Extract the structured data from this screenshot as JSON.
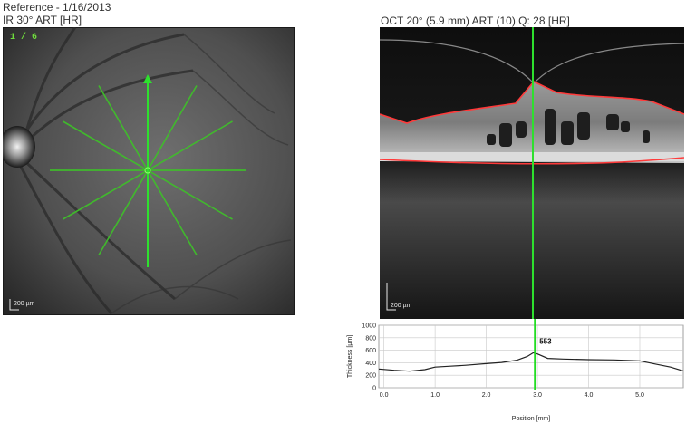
{
  "header": {
    "reference": "Reference - 1/16/2013",
    "ir_title": "IR 30° ART [HR]",
    "oct_title": "OCT 20° (5.9 mm) ART (10) Q: 28 [HR]"
  },
  "fundus": {
    "scan_counter": "1 / 6",
    "scale_label": "200 µm"
  },
  "bscan": {
    "scale_label": "200 µm"
  },
  "colors": {
    "scan_line": "#22dd22",
    "segmentation": "#ff3a3a",
    "profile": "#222222"
  },
  "chart_data": {
    "type": "line",
    "xlabel": "Position [mm]",
    "ylabel": "Thickness [µm]",
    "xlim": [
      -0.1,
      5.85
    ],
    "ylim": [
      0,
      1000
    ],
    "xticks": [
      "0.0",
      "1.0",
      "2.0",
      "3.0",
      "4.0",
      "5.0"
    ],
    "yticks": [
      "0",
      "200",
      "400",
      "600",
      "800",
      "1000"
    ],
    "grid": true,
    "marker_x": 2.95,
    "marker_label": "553",
    "series": [
      {
        "x": [
          -0.1,
          0.2,
          0.5,
          0.8,
          1.0,
          1.3,
          1.6,
          2.0,
          2.3,
          2.6,
          2.8,
          2.92,
          3.0,
          3.2,
          3.5,
          4.0,
          4.5,
          5.0,
          5.3,
          5.6,
          5.85
        ],
        "y": [
          300,
          280,
          265,
          290,
          330,
          345,
          360,
          385,
          405,
          440,
          500,
          560,
          540,
          470,
          460,
          450,
          445,
          430,
          380,
          330,
          270
        ]
      }
    ]
  }
}
